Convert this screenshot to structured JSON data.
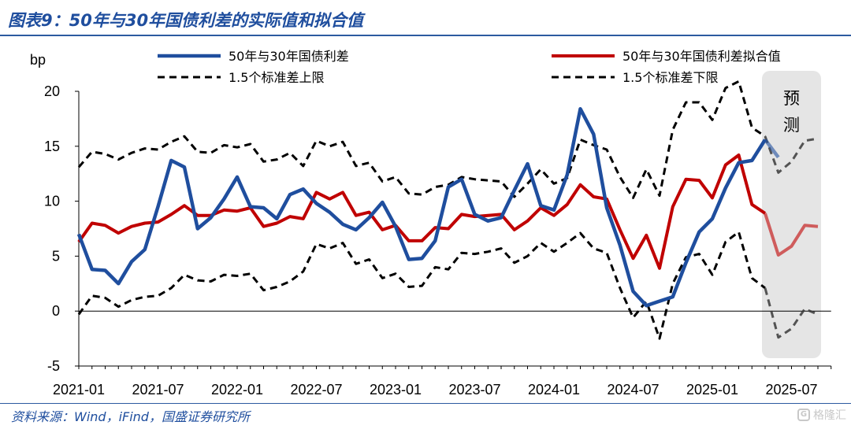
{
  "header": {
    "title": "图表9：50年与30年国债利差的实际值和拟合值"
  },
  "footer": {
    "source": "资料来源：Wind，iFind，国盛证券研究所",
    "watermark": "格隆汇"
  },
  "colors": {
    "actual": "#1f4e9e",
    "fitted": "#c00000",
    "band": "#000000",
    "forecast_bg": "#e5e5e5"
  },
  "chart_data": {
    "type": "line",
    "unit_label": "bp",
    "ylim": [
      -5,
      20
    ],
    "yticks": [
      -5,
      0,
      5,
      10,
      15,
      20
    ],
    "x_tick_labels": [
      "2021-01",
      "2021-07",
      "2022-01",
      "2022-07",
      "2023-01",
      "2023-07",
      "2024-01",
      "2024-07",
      "2025-01",
      "2025-07"
    ],
    "x_start": "2021-01",
    "forecast_label": "预测",
    "forecast_start": "2025-05",
    "forecast_end": "2025-09",
    "series": [
      {
        "name": "50年与30年国债利差",
        "style": "actual",
        "values": [
          7.0,
          3.8,
          3.7,
          2.5,
          4.5,
          5.6,
          9.5,
          13.7,
          13.1,
          7.5,
          8.5,
          10.2,
          12.2,
          9.5,
          9.4,
          8.4,
          10.6,
          11.1,
          9.8,
          9.0,
          7.9,
          7.4,
          8.5,
          9.9,
          7.7,
          4.7,
          4.8,
          6.4,
          11.3,
          12.0,
          8.8,
          8.2,
          8.5,
          11.0,
          13.4,
          9.6,
          9.2,
          12.4,
          18.4,
          16.1,
          9.4,
          6.0,
          1.8,
          0.5,
          0.9,
          1.3,
          4.4,
          7.2,
          8.4,
          11.2,
          13.5,
          13.7,
          15.6,
          14.0
        ]
      },
      {
        "name": "50年与30年国债利差拟合值",
        "style": "fitted",
        "values": [
          6.3,
          8.0,
          7.8,
          7.1,
          7.7,
          8.0,
          8.1,
          8.8,
          9.6,
          8.7,
          8.7,
          9.2,
          9.1,
          9.4,
          7.7,
          8.0,
          8.6,
          8.4,
          10.8,
          10.2,
          10.8,
          8.7,
          9.0,
          7.4,
          7.8,
          6.4,
          6.4,
          7.6,
          7.5,
          8.8,
          8.6,
          8.7,
          8.8,
          7.4,
          8.2,
          9.4,
          8.7,
          9.7,
          11.5,
          10.4,
          10.2,
          7.4,
          4.8,
          6.9,
          3.9,
          9.5,
          12.0,
          11.9,
          10.3,
          13.3,
          14.2,
          9.7,
          8.9,
          5.1,
          5.9,
          7.8,
          7.7
        ]
      },
      {
        "name": "1.5个标准差上限",
        "style": "band",
        "values": [
          13.1,
          14.5,
          14.3,
          13.8,
          14.4,
          14.8,
          14.7,
          15.4,
          15.9,
          14.5,
          14.4,
          15.1,
          14.9,
          15.2,
          13.6,
          13.8,
          14.4,
          13.2,
          15.5,
          15.0,
          15.4,
          13.2,
          13.5,
          11.8,
          12.2,
          10.7,
          10.6,
          11.3,
          11.5,
          12.2,
          12.0,
          11.9,
          11.8,
          10.4,
          11.6,
          12.9,
          11.6,
          12.1,
          15.6,
          15.1,
          14.7,
          12.2,
          10.3,
          12.9,
          10.5,
          16.5,
          19.0,
          19.0,
          17.4,
          20.3,
          20.9,
          16.7,
          15.9,
          12.6,
          13.6,
          15.5,
          15.7
        ]
      },
      {
        "name": "1.5个标准差下限",
        "style": "band",
        "values": [
          -0.3,
          1.4,
          1.2,
          0.4,
          1.0,
          1.3,
          1.4,
          2.1,
          3.3,
          2.8,
          2.7,
          3.3,
          3.2,
          3.4,
          1.9,
          2.2,
          2.7,
          3.6,
          6.1,
          5.7,
          6.2,
          4.3,
          4.7,
          3.0,
          3.4,
          2.2,
          2.3,
          4.0,
          3.8,
          5.3,
          5.2,
          5.4,
          5.7,
          4.4,
          5.0,
          6.2,
          5.4,
          6.2,
          7.1,
          5.7,
          5.3,
          2.1,
          -0.6,
          0.9,
          -2.5,
          2.5,
          4.9,
          5.2,
          3.3,
          6.3,
          7.2,
          3.0,
          2.1,
          -2.4,
          -1.6,
          0.2,
          -0.3
        ]
      }
    ]
  }
}
